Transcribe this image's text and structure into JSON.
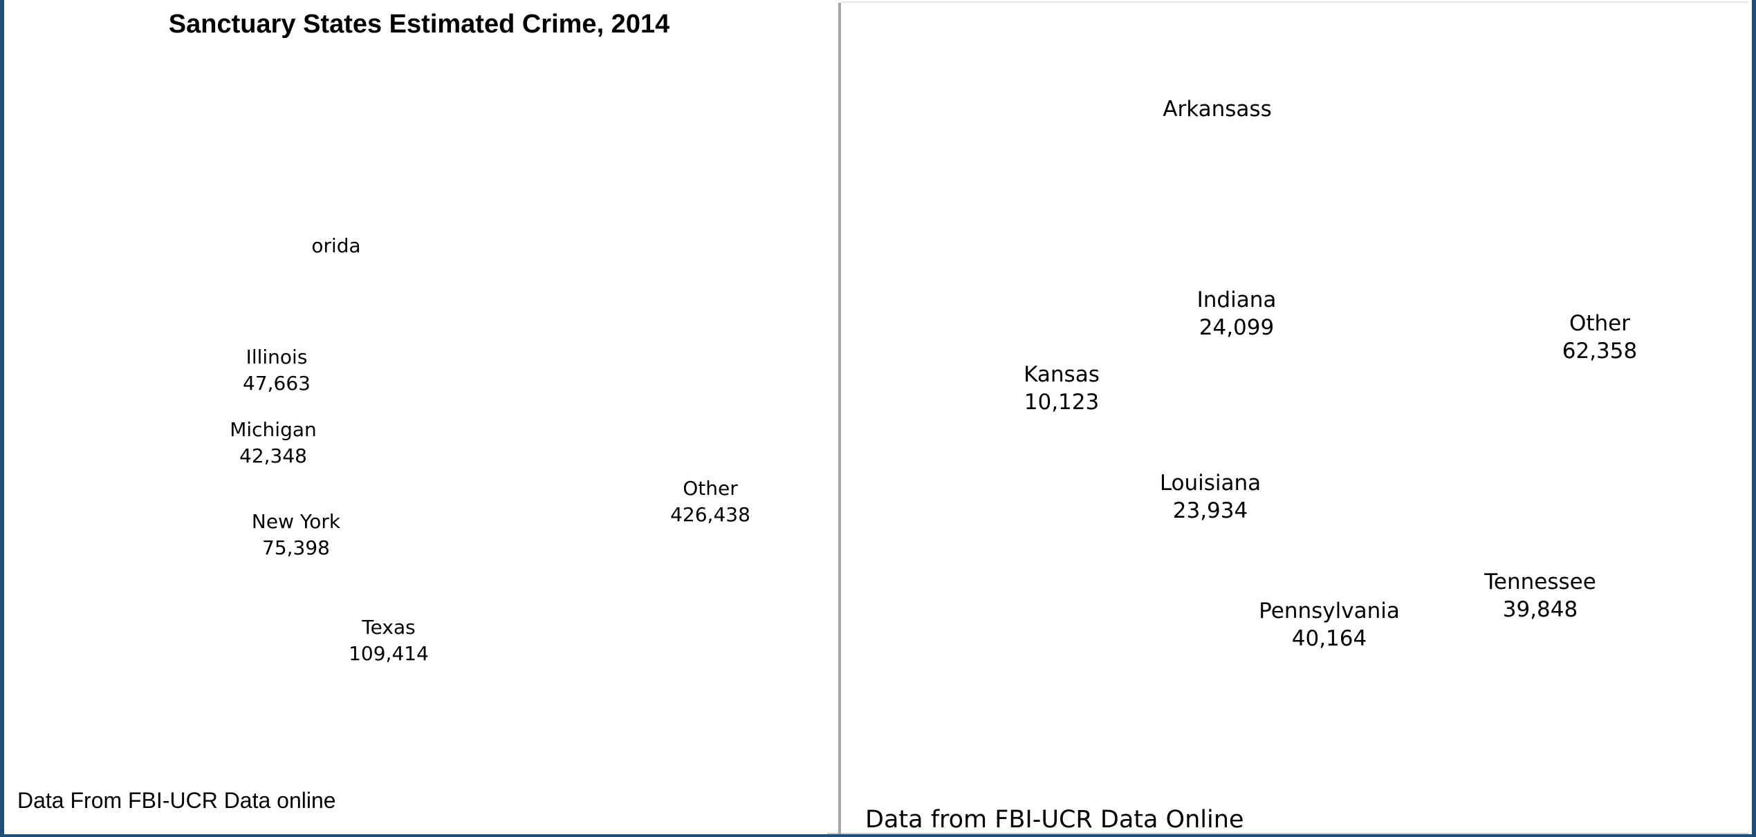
{
  "chart_data": [
    {
      "type": "pie",
      "title": "Sanctuary States Estimated Crime, 2014",
      "source_note": "Data From FBI-UCR Data online",
      "slices": [
        {
          "label": "orida",
          "value": null
        },
        {
          "label": "Illinois",
          "value": 47663,
          "value_text": "47,663"
        },
        {
          "label": "Michigan",
          "value": 42348,
          "value_text": "42,348"
        },
        {
          "label": "New York",
          "value": 75398,
          "value_text": "75,398"
        },
        {
          "label": "Texas",
          "value": 109414,
          "value_text": "109,414"
        },
        {
          "label": "Other",
          "value": 426438,
          "value_text": "426,438"
        }
      ]
    },
    {
      "type": "pie",
      "title": "",
      "source_note": "Data from FBI-UCR Data Online",
      "slices": [
        {
          "label": "Arkansass",
          "value": null
        },
        {
          "label": "Indiana",
          "value": 24099,
          "value_text": "24,099"
        },
        {
          "label": "Kansas",
          "value": 10123,
          "value_text": "10,123"
        },
        {
          "label": "Louisiana",
          "value": 23934,
          "value_text": "23,934"
        },
        {
          "label": "Pennsylvania",
          "value": 40164,
          "value_text": "40,164"
        },
        {
          "label": "Tennessee",
          "value": 39848,
          "value_text": "39,848"
        },
        {
          "label": "Other",
          "value": 62358,
          "value_text": "62,358"
        }
      ]
    }
  ]
}
